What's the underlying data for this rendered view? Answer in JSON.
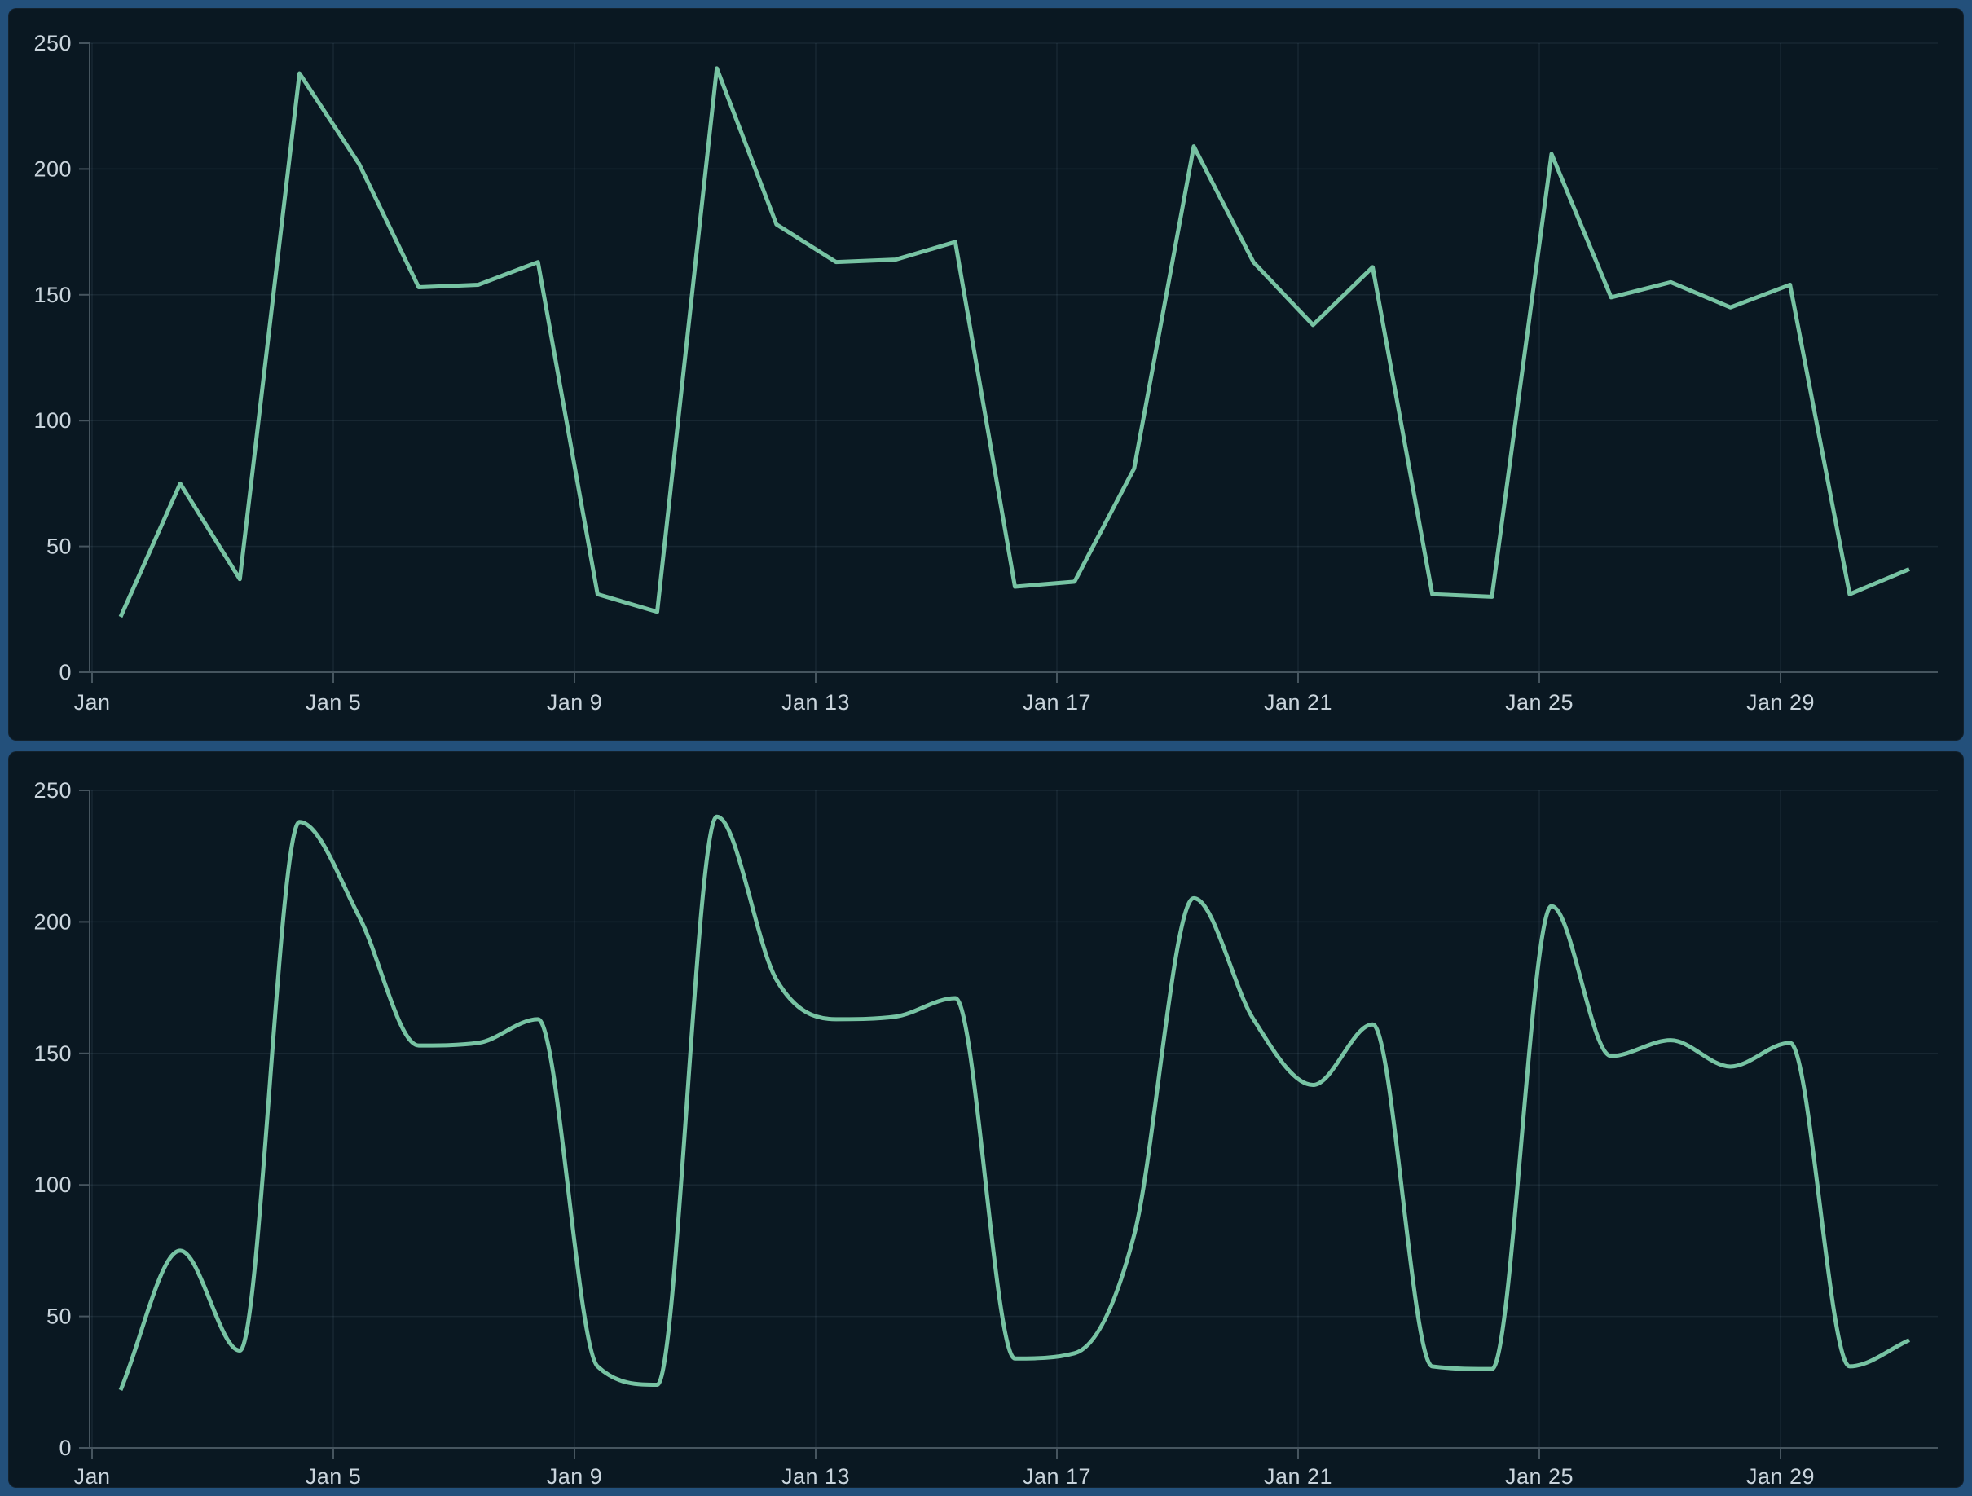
{
  "theme": {
    "background_color": "#23507b",
    "panel_color": "#0a1822",
    "grid_color": "rgba(170,200,225,0.09)",
    "axis_color": "#46555f",
    "tick_color": "#46555f",
    "label_color": "#c9d4dc",
    "line_color": "#77c3a3"
  },
  "chart_data": [
    {
      "type": "line",
      "title": "",
      "xlabel": "",
      "ylabel": "",
      "smooth": false,
      "legend": "none",
      "grid": "on",
      "x": [
        1,
        2,
        3,
        4,
        5,
        6,
        7,
        8,
        9,
        10,
        11,
        12,
        13,
        14,
        15,
        16,
        17,
        18,
        19,
        20,
        21,
        22,
        23,
        24,
        25,
        26,
        27,
        28,
        29,
        30,
        31
      ],
      "values": [
        22,
        75,
        37,
        238,
        202,
        153,
        154,
        163,
        31,
        24,
        240,
        178,
        163,
        164,
        171,
        34,
        36,
        81,
        209,
        163,
        138,
        161,
        31,
        30,
        206,
        149,
        155,
        145,
        154,
        31,
        41
      ],
      "x_tick_labels": [
        "Jan",
        "Jan 5",
        "Jan 9",
        "Jan 13",
        "Jan 17",
        "Jan 21",
        "Jan 25",
        "Jan 29"
      ],
      "y_ticks": [
        0,
        50,
        100,
        150,
        200,
        250
      ],
      "ylim": [
        0,
        250
      ]
    },
    {
      "type": "line",
      "title": "",
      "xlabel": "",
      "ylabel": "",
      "smooth": true,
      "legend": "none",
      "grid": "on",
      "x": [
        1,
        2,
        3,
        4,
        5,
        6,
        7,
        8,
        9,
        10,
        11,
        12,
        13,
        14,
        15,
        16,
        17,
        18,
        19,
        20,
        21,
        22,
        23,
        24,
        25,
        26,
        27,
        28,
        29,
        30,
        31
      ],
      "values": [
        22,
        75,
        37,
        238,
        202,
        153,
        154,
        163,
        31,
        24,
        240,
        178,
        163,
        164,
        171,
        34,
        36,
        81,
        209,
        163,
        138,
        161,
        31,
        30,
        206,
        149,
        155,
        145,
        154,
        31,
        41
      ],
      "x_tick_labels": [
        "Jan",
        "Jan 5",
        "Jan 9",
        "Jan 13",
        "Jan 17",
        "Jan 21",
        "Jan 25",
        "Jan 29"
      ],
      "y_ticks": [
        0,
        50,
        100,
        150,
        200,
        250
      ],
      "ylim": [
        0,
        250
      ]
    }
  ]
}
